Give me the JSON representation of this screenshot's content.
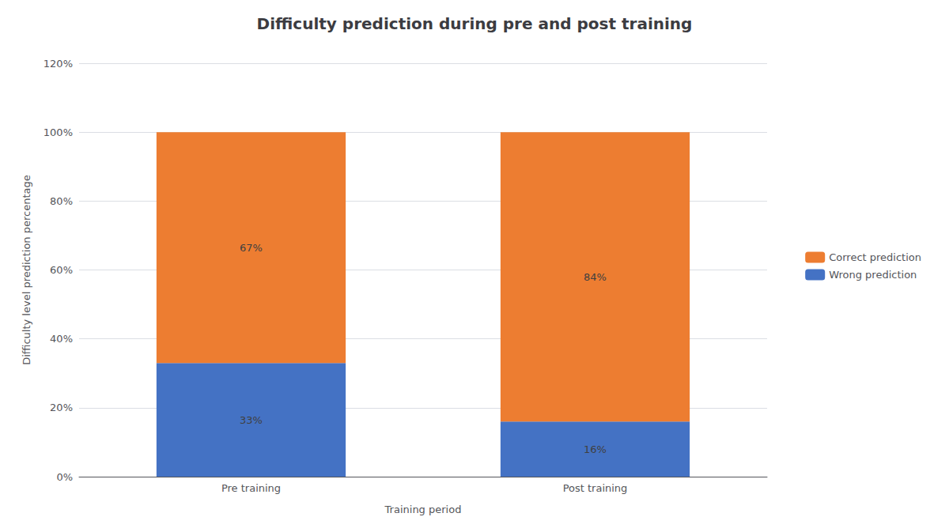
{
  "chart_data": {
    "type": "bar",
    "title": "Difficulty prediction during pre and post training",
    "xlabel": "Training period",
    "ylabel": "Difficulty level prediction percentage",
    "categories": [
      "Pre training",
      "Post training"
    ],
    "series": [
      {
        "name": "Wrong prediction",
        "color": "#4472C4",
        "values": [
          33,
          16
        ],
        "value_labels": [
          "33%",
          "16%"
        ]
      },
      {
        "name": "Correct prediction",
        "color": "#ED7D31",
        "values": [
          67,
          84
        ],
        "value_labels": [
          "67%",
          "84%"
        ]
      }
    ],
    "stacked": true,
    "data_labels": true,
    "ylim": [
      0,
      120
    ],
    "yticks": [
      {
        "value": 0,
        "label": "0%"
      },
      {
        "value": 20,
        "label": "20%"
      },
      {
        "value": 40,
        "label": "40%"
      },
      {
        "value": 60,
        "label": "60%"
      },
      {
        "value": 80,
        "label": "80%"
      },
      {
        "value": 100,
        "label": "100%"
      },
      {
        "value": 120,
        "label": "120%"
      }
    ],
    "grid": true,
    "legend": "right"
  }
}
